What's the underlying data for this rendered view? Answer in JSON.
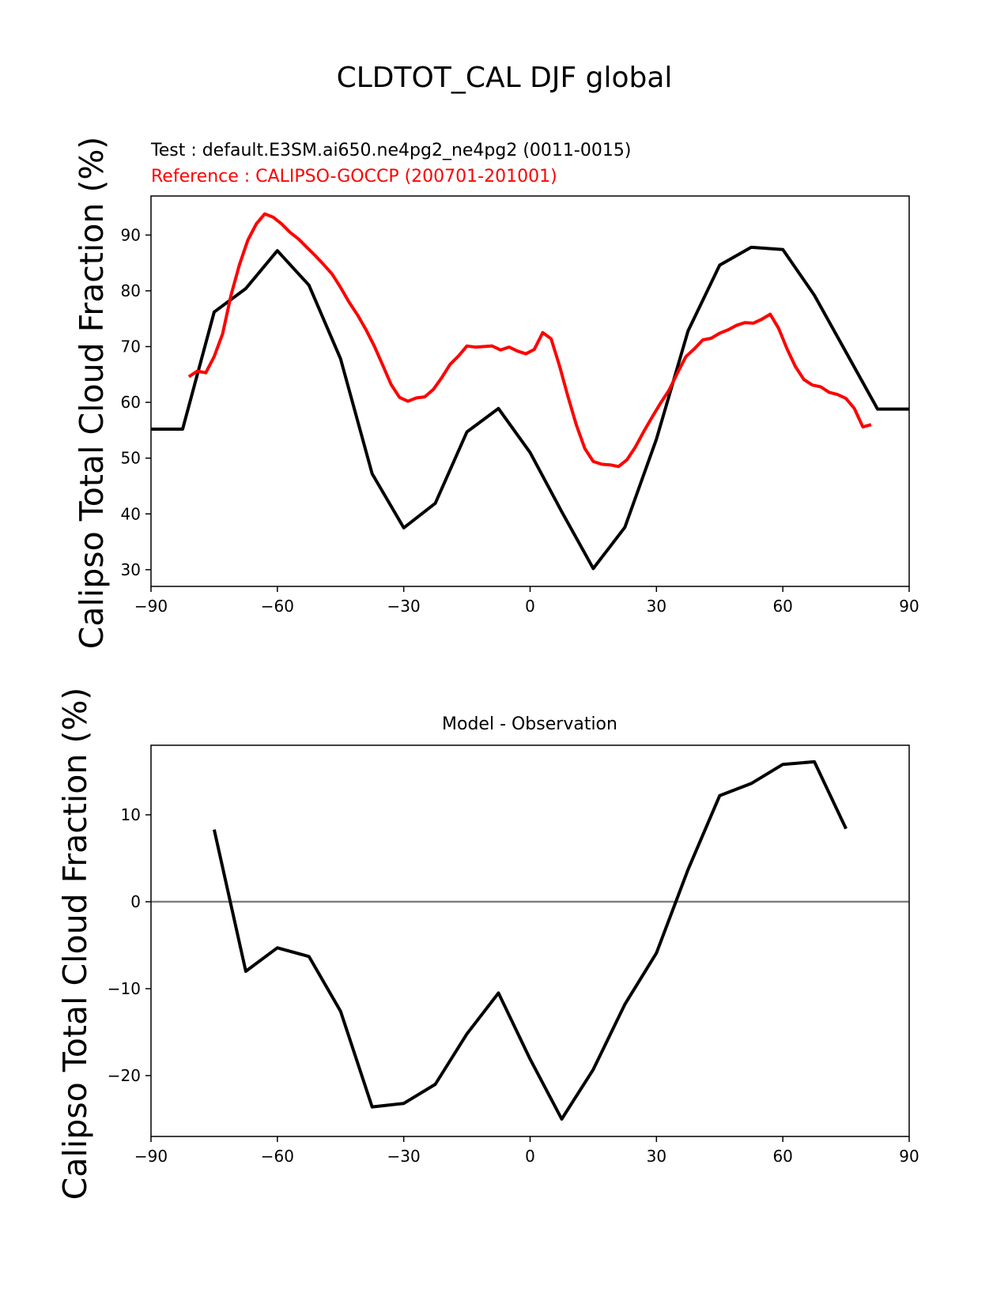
{
  "title": "CLDTOT_CAL DJF global",
  "chart_data": [
    {
      "type": "line",
      "test_label": "Test : default.E3SM.ai650.ne4pg2_ne4pg2 (0011-0015)",
      "reference_label": "Reference : CALIPSO-GOCCP (200701-201001)",
      "ylabel": "Calipso Total Cloud Fraction (%)",
      "xlim": [
        -90,
        90
      ],
      "ylim": [
        27,
        97
      ],
      "xticks": [
        "−90",
        "−60",
        "−30",
        "0",
        "30",
        "60",
        "90"
      ],
      "yticks": [
        "30",
        "40",
        "50",
        "60",
        "70",
        "80",
        "90"
      ],
      "colors": {
        "test": "#000000",
        "reference": "#ff0000"
      },
      "series": [
        {
          "role": "test",
          "x": [
            -90,
            -82.5,
            -75,
            -67.5,
            -60,
            -52.5,
            -45,
            -37.5,
            -30,
            -22.5,
            -15,
            -7.5,
            0,
            7.5,
            15,
            22.5,
            30,
            37.5,
            45,
            52.5,
            60,
            67.5,
            75,
            82.5,
            90
          ],
          "y": [
            55.2,
            55.2,
            76.2,
            80.4,
            87.2,
            81.0,
            67.8,
            47.2,
            37.5,
            41.9,
            54.7,
            58.9,
            51.0,
            40.4,
            30.2,
            37.6,
            53.4,
            72.8,
            84.6,
            87.8,
            87.4,
            79.2,
            69.0,
            58.8,
            58.8
          ]
        },
        {
          "role": "reference",
          "x": [
            -81,
            -79,
            -77,
            -75,
            -73,
            -71,
            -69,
            -67,
            -65,
            -63,
            -61,
            -59,
            -57,
            -55,
            -53,
            -51,
            -49,
            -47,
            -45,
            -43,
            -41,
            -39,
            -37,
            -35,
            -33,
            -31,
            -29,
            -27,
            -25,
            -23,
            -21,
            -19,
            -17,
            -15,
            -13,
            -11,
            -9,
            -7,
            -5,
            -3,
            -1,
            1,
            3,
            5,
            7,
            9,
            11,
            13,
            15,
            17,
            19,
            21,
            23,
            25,
            27,
            29,
            31,
            33,
            35,
            37,
            39,
            41,
            43,
            45,
            47,
            49,
            51,
            53,
            55,
            57,
            59,
            61,
            63,
            65,
            67,
            69,
            71,
            73,
            75,
            77,
            79,
            81
          ],
          "y": [
            64.6,
            65.6,
            65.3,
            68.2,
            72.3,
            79.2,
            84.7,
            89.1,
            92.0,
            93.8,
            93.2,
            92.0,
            90.5,
            89.3,
            87.8,
            86.3,
            84.7,
            83.0,
            80.6,
            78.0,
            75.7,
            73.1,
            70.1,
            66.7,
            63.2,
            60.9,
            60.2,
            60.8,
            61.0,
            62.3,
            64.4,
            66.8,
            68.3,
            70.1,
            69.9,
            70.0,
            70.1,
            69.4,
            69.9,
            69.2,
            68.7,
            69.5,
            72.5,
            71.4,
            66.5,
            61.0,
            55.9,
            51.7,
            49.4,
            48.9,
            48.8,
            48.5,
            49.7,
            52.0,
            54.8,
            57.4,
            59.9,
            62.2,
            65.3,
            68.2,
            69.6,
            71.2,
            71.5,
            72.4,
            73.0,
            73.8,
            74.3,
            74.2,
            74.9,
            75.8,
            73.3,
            69.6,
            66.4,
            64.1,
            63.1,
            62.8,
            61.8,
            61.4,
            60.7,
            58.9,
            55.6,
            56.0
          ]
        }
      ]
    },
    {
      "type": "line",
      "title": "Model - Observation",
      "ylabel": "Calipso Total Cloud Fraction (%)",
      "xlim": [
        -90,
        90
      ],
      "ylim": [
        -27,
        18
      ],
      "xticks": [
        "−90",
        "−60",
        "−30",
        "0",
        "30",
        "60",
        "90"
      ],
      "yticks": [
        "−20",
        "−10",
        "0",
        "10"
      ],
      "zero_line_color": "#808080",
      "series": [
        {
          "role": "difference",
          "x": [
            -75,
            -67.5,
            -60,
            -52.5,
            -45,
            -37.5,
            -30,
            -22.5,
            -15,
            -7.5,
            0,
            7.5,
            15,
            22.5,
            30,
            37.5,
            45,
            52.5,
            60,
            67.5,
            75
          ],
          "y": [
            8.3,
            -8.0,
            -5.3,
            -6.3,
            -12.6,
            -23.6,
            -23.2,
            -21.0,
            -15.2,
            -10.5,
            -18.1,
            -25.0,
            -19.3,
            -11.8,
            -5.9,
            3.7,
            12.2,
            13.6,
            15.8,
            16.1,
            8.4
          ]
        }
      ]
    }
  ]
}
